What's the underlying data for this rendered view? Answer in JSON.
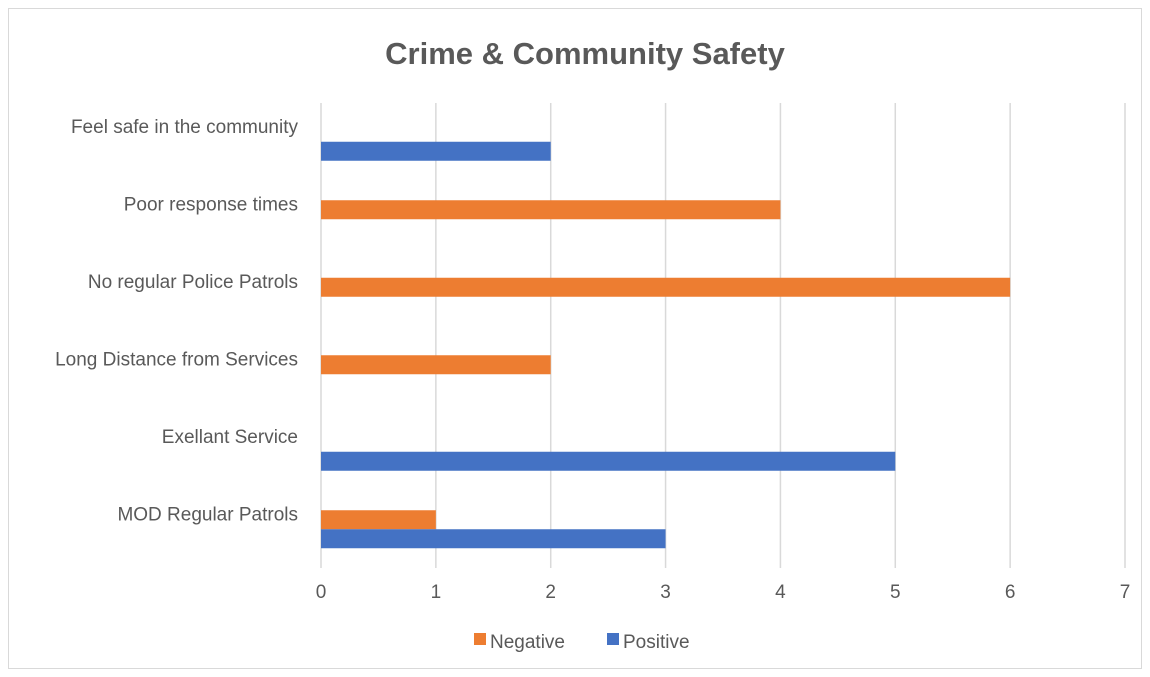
{
  "chart_data": {
    "type": "bar",
    "orientation": "horizontal",
    "title": "Crime & Community Safety",
    "xlabel": "",
    "ylabel": "",
    "categories": [
      "Feel safe in the community",
      "Poor response times",
      "No regular Police Patrols",
      "Long Distance from Services",
      "Exellant Service",
      "MOD Regular Patrols"
    ],
    "series": [
      {
        "name": "Negative",
        "color": "#ED7D31",
        "values": [
          0,
          4,
          6,
          2,
          0,
          1
        ]
      },
      {
        "name": "Positive",
        "color": "#4472C4",
        "values": [
          2,
          0,
          0,
          0,
          5,
          3
        ]
      }
    ],
    "xlim": [
      0,
      7
    ],
    "xticks": [
      "0",
      "1",
      "2",
      "3",
      "4",
      "5",
      "6",
      "7"
    ],
    "grid": "vertical",
    "legend": "bottom"
  }
}
